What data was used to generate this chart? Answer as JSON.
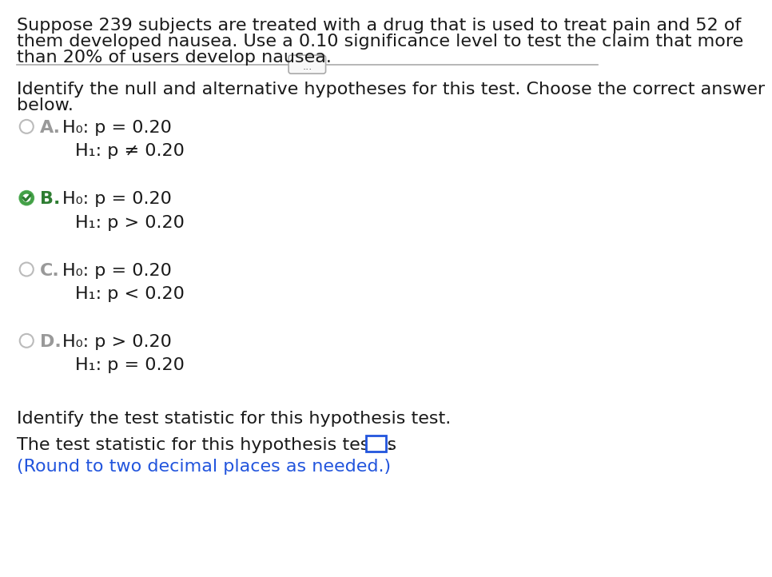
{
  "intro_text_line1": "Suppose 239 subjects are treated with a drug that is used to treat pain and 52 of",
  "intro_text_line2": "them developed nausea. Use a 0.10 significance level to test the claim that more",
  "intro_text_line3": "than 20% of users develop nausea.",
  "separator_text": "...",
  "question1": "Identify the null and alternative hypotheses for this test. Choose the correct answer",
  "question1b": "below.",
  "options": [
    {
      "label": "A.",
      "h0": "H₀: p = 0.20",
      "h1": "H₁: p ≠ 0.20",
      "selected": false
    },
    {
      "label": "B.",
      "h0": "H₀: p = 0.20",
      "h1": "H₁: p > 0.20",
      "selected": true
    },
    {
      "label": "C.",
      "h0": "H₀: p = 0.20",
      "h1": "H₁: p < 0.20",
      "selected": false
    },
    {
      "label": "D.",
      "h0": "H₀: p > 0.20",
      "h1": "H₁: p = 0.20",
      "selected": false
    }
  ],
  "question2": "Identify the test statistic for this hypothesis test.",
  "answer_line": "The test statistic for this hypothesis test is",
  "answer_note": "(Round to two decimal places as needed.)",
  "bg_color": "#ffffff",
  "text_color": "#1a1a1a",
  "blue_color": "#2255dd",
  "label_color_selected": "#2e7d32",
  "label_color_unselected": "#999999",
  "circle_color_unselected": "#bbbbbb",
  "main_font_size": 16,
  "option_font_size": 16,
  "label_font_size": 16
}
